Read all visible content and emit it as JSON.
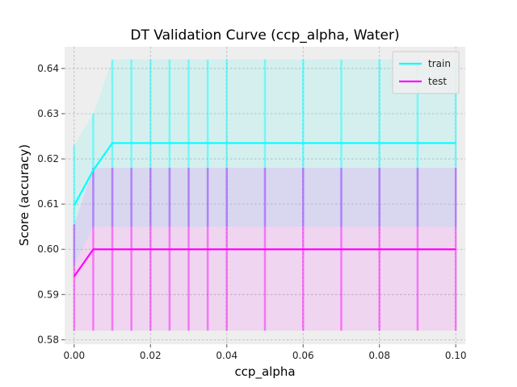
{
  "chart_data": {
    "type": "line",
    "title": "DT Validation Curve (ccp_alpha, Water)",
    "xlabel": "ccp_alpha",
    "ylabel": "Score (accuracy)",
    "xlim": [
      -0.0025,
      0.1025
    ],
    "ylim": [
      0.579,
      0.6448
    ],
    "xticks": [
      0.0,
      0.02,
      0.04,
      0.06,
      0.08,
      0.1
    ],
    "xtick_labels": [
      "0.00",
      "0.02",
      "0.04",
      "0.06",
      "0.08",
      "0.10"
    ],
    "yticks": [
      0.58,
      0.59,
      0.6,
      0.61,
      0.62,
      0.63,
      0.64
    ],
    "ytick_labels": [
      "0.58",
      "0.59",
      "0.60",
      "0.61",
      "0.62",
      "0.63",
      "0.64"
    ],
    "grid": true,
    "legend_position": "top-right",
    "x": [
      0.0,
      0.005,
      0.01,
      0.015,
      0.02,
      0.025,
      0.03,
      0.035,
      0.04,
      0.05,
      0.06,
      0.07,
      0.08,
      0.09,
      0.1
    ],
    "series": [
      {
        "name": "train",
        "color": "#00ffff",
        "values": [
          0.6097,
          0.6175,
          0.6235,
          0.6235,
          0.6235,
          0.6235,
          0.6235,
          0.6235,
          0.6235,
          0.6235,
          0.6235,
          0.6235,
          0.6235,
          0.6235,
          0.6235
        ],
        "band_lower": [
          0.5965,
          0.605,
          0.605,
          0.605,
          0.605,
          0.605,
          0.605,
          0.605,
          0.605,
          0.605,
          0.605,
          0.605,
          0.605,
          0.605,
          0.605
        ],
        "band_upper": [
          0.623,
          0.63,
          0.642,
          0.642,
          0.642,
          0.642,
          0.642,
          0.642,
          0.642,
          0.642,
          0.642,
          0.642,
          0.642,
          0.642,
          0.642
        ]
      },
      {
        "name": "test",
        "color": "#ff00ff",
        "values": [
          0.594,
          0.6,
          0.6,
          0.6,
          0.6,
          0.6,
          0.6,
          0.6,
          0.6,
          0.6,
          0.6,
          0.6,
          0.6,
          0.6,
          0.6
        ],
        "band_lower": [
          0.582,
          0.582,
          0.582,
          0.582,
          0.582,
          0.582,
          0.582,
          0.582,
          0.582,
          0.582,
          0.582,
          0.582,
          0.582,
          0.582,
          0.582
        ],
        "band_upper": [
          0.6055,
          0.618,
          0.618,
          0.618,
          0.618,
          0.618,
          0.618,
          0.618,
          0.618,
          0.618,
          0.618,
          0.618,
          0.618,
          0.618,
          0.618
        ]
      }
    ]
  }
}
